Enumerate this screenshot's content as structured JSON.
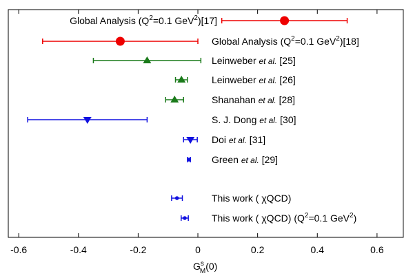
{
  "chart_data": {
    "type": "forest",
    "x_label": [
      {
        "text": "G"
      },
      {
        "text": "s",
        "style": "sup"
      },
      {
        "text": "M",
        "style": "sub"
      },
      {
        "text": "(0)"
      }
    ],
    "xlim": [
      -0.635,
      0.688
    ],
    "xticks": [
      -0.6,
      -0.4,
      -0.2,
      0,
      0.2,
      0.4,
      0.6
    ],
    "items": [
      {
        "label": [
          {
            "text": "Global Analysis (Q"
          },
          {
            "text": "2",
            "style": "sup"
          },
          {
            "text": "=0.1 GeV"
          },
          {
            "text": "2",
            "style": "sup"
          },
          {
            "text": ")[17]"
          }
        ],
        "value": 0.29,
        "error": 0.21,
        "color": "#ee0000",
        "marker": "circle"
      },
      {
        "label": [
          {
            "text": "Global Analysis (Q"
          },
          {
            "text": "2",
            "style": "sup"
          },
          {
            "text": "=0.1 GeV"
          },
          {
            "text": "2",
            "style": "sup"
          },
          {
            "text": ")[18]"
          }
        ],
        "value": -0.26,
        "error": 0.26,
        "color": "#ee0000",
        "marker": "circle"
      },
      {
        "label": [
          {
            "text": "Leinweber "
          },
          {
            "text": "et al.",
            "style": "italic"
          },
          {
            "text": " [25]"
          }
        ],
        "value": -0.17,
        "error": 0.18,
        "color": "#1a7a1a",
        "marker": "triangle-up"
      },
      {
        "label": [
          {
            "text": "Leinweber "
          },
          {
            "text": "et al.",
            "style": "italic"
          },
          {
            "text": " [26]"
          }
        ],
        "value": -0.055,
        "error": 0.02,
        "color": "#1a7a1a",
        "marker": "triangle-up"
      },
      {
        "label": [
          {
            "text": "Shanahan "
          },
          {
            "text": "et al.",
            "style": "italic"
          },
          {
            "text": " [28]"
          }
        ],
        "value": -0.078,
        "error": 0.03,
        "color": "#1a7a1a",
        "marker": "triangle-up"
      },
      {
        "label": [
          {
            "text": "S. J. Dong "
          },
          {
            "text": "et al.",
            "style": "italic"
          },
          {
            "text": " [30]"
          }
        ],
        "value": -0.37,
        "error": 0.2,
        "color": "#1010e0",
        "marker": "triangle-down"
      },
      {
        "label": [
          {
            "text": "Doi "
          },
          {
            "text": "et al.",
            "style": "italic"
          },
          {
            "text": " [31]"
          }
        ],
        "value": -0.025,
        "error": 0.023,
        "color": "#1010e0",
        "marker": "triangle-down"
      },
      {
        "label": [
          {
            "text": "Green "
          },
          {
            "text": "et al.",
            "style": "italic"
          },
          {
            "text": " [29]"
          }
        ],
        "value": -0.03,
        "error": 0.005,
        "color": "#1010e0",
        "marker": "small-circle"
      },
      {
        "label": [
          {
            "text": "This work ( χQCD)"
          }
        ],
        "value": -0.07,
        "error": 0.018,
        "color": "#1010e0",
        "marker": "small-circle"
      },
      {
        "label": [
          {
            "text": "This work ( χQCD) (Q"
          },
          {
            "text": "2",
            "style": "sup"
          },
          {
            "text": "=0.1 GeV"
          },
          {
            "text": "2",
            "style": "sup"
          },
          {
            "text": ")"
          }
        ],
        "value": -0.044,
        "error": 0.012,
        "color": "#1010e0",
        "marker": "small-circle"
      }
    ]
  }
}
